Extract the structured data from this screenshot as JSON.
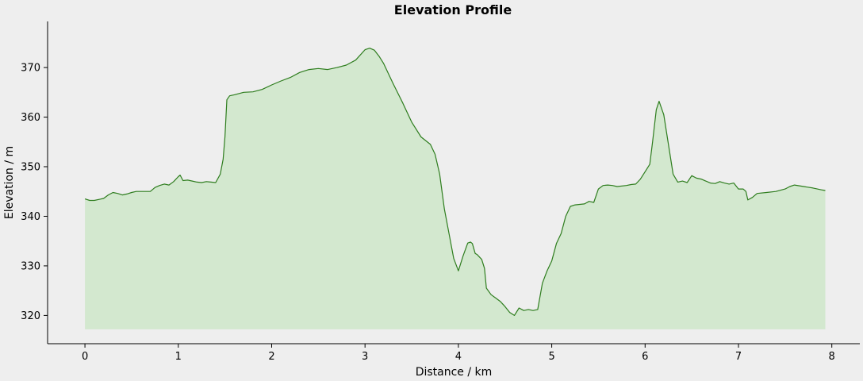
{
  "chart_data": {
    "type": "area",
    "title": "Elevation Profile",
    "xlabel": "Distance / km",
    "ylabel": "Elevation / m",
    "xlim": [
      -0.4,
      8.3
    ],
    "ylim": [
      314.3,
      379.3
    ],
    "xticks": [
      0,
      1,
      2,
      3,
      4,
      5,
      6,
      7,
      8
    ],
    "yticks": [
      320,
      330,
      340,
      350,
      360,
      370
    ],
    "fill_base": 317.2,
    "grid": false,
    "colors": {
      "line": "#2e7d1e",
      "fill": "#d3e8cf",
      "background": "#eeeeee"
    },
    "series": [
      {
        "x": [
          0,
          0.05,
          0.1,
          0.2,
          0.25,
          0.3,
          0.35,
          0.4,
          0.45,
          0.5,
          0.55,
          0.6,
          0.7,
          0.75,
          0.8,
          0.85,
          0.9,
          0.95,
          1.0,
          1.02,
          1.05,
          1.1,
          1.15,
          1.2,
          1.25,
          1.3,
          1.35,
          1.4,
          1.45,
          1.48,
          1.5,
          1.52,
          1.55,
          1.6,
          1.7,
          1.8,
          1.9,
          2.0,
          2.1,
          2.2,
          2.3,
          2.4,
          2.5,
          2.6,
          2.7,
          2.8,
          2.9,
          3.0,
          3.05,
          3.1,
          3.15,
          3.2,
          3.3,
          3.4,
          3.5,
          3.6,
          3.7,
          3.75,
          3.8,
          3.85,
          3.9,
          3.95,
          4.0,
          4.05,
          4.1,
          4.13,
          4.15,
          4.18,
          4.2,
          4.25,
          4.28,
          4.3,
          4.35,
          4.4,
          4.45,
          4.5,
          4.55,
          4.6,
          4.65,
          4.7,
          4.75,
          4.8,
          4.85,
          4.9,
          4.95,
          5.0,
          5.05,
          5.1,
          5.15,
          5.2,
          5.25,
          5.3,
          5.35,
          5.4,
          5.45,
          5.5,
          5.55,
          5.6,
          5.65,
          5.7,
          5.8,
          5.85,
          5.9,
          5.95,
          6.0,
          6.05,
          6.08,
          6.12,
          6.15,
          6.2,
          6.25,
          6.3,
          6.35,
          6.4,
          6.45,
          6.5,
          6.55,
          6.6,
          6.7,
          6.75,
          6.8,
          6.85,
          6.9,
          6.95,
          7.0,
          7.05,
          7.08,
          7.1,
          7.15,
          7.2,
          7.3,
          7.4,
          7.5,
          7.55,
          7.6,
          7.7,
          7.8,
          7.9,
          7.93
        ],
        "y": [
          343.5,
          343.2,
          343.2,
          343.6,
          344.3,
          344.8,
          344.6,
          344.3,
          344.5,
          344.8,
          345.0,
          345.0,
          345.0,
          345.8,
          346.2,
          346.5,
          346.3,
          347.0,
          348.0,
          348.3,
          347.2,
          347.3,
          347.1,
          346.9,
          346.8,
          347.0,
          346.9,
          346.8,
          348.5,
          351.5,
          356.0,
          363.5,
          364.3,
          364.5,
          365.0,
          365.1,
          365.6,
          366.5,
          367.3,
          368.0,
          369.0,
          369.6,
          369.8,
          369.6,
          370.0,
          370.5,
          371.5,
          373.6,
          373.9,
          373.5,
          372.3,
          370.8,
          366.8,
          363.0,
          359.0,
          356.0,
          354.5,
          352.5,
          348.5,
          341.5,
          336.5,
          331.5,
          329.0,
          332.0,
          334.6,
          334.8,
          334.5,
          332.5,
          332.3,
          331.3,
          329.5,
          325.5,
          324.2,
          323.5,
          322.8,
          321.8,
          320.6,
          320.0,
          321.5,
          321.0,
          321.2,
          321.0,
          321.2,
          326.5,
          329.0,
          331.0,
          334.5,
          336.5,
          340.0,
          342.0,
          342.3,
          342.4,
          342.5,
          343.0,
          342.8,
          345.5,
          346.2,
          346.3,
          346.2,
          346.0,
          346.2,
          346.4,
          346.5,
          347.5,
          349.0,
          350.5,
          355.0,
          361.5,
          363.2,
          360.5,
          354.5,
          348.5,
          346.9,
          347.1,
          346.8,
          348.2,
          347.7,
          347.5,
          346.7,
          346.6,
          347.0,
          346.7,
          346.5,
          346.7,
          345.5,
          345.5,
          345.0,
          343.3,
          343.8,
          344.6,
          344.8,
          345.0,
          345.5,
          346.0,
          346.3,
          346.0,
          345.7,
          345.3,
          345.2
        ]
      }
    ]
  }
}
